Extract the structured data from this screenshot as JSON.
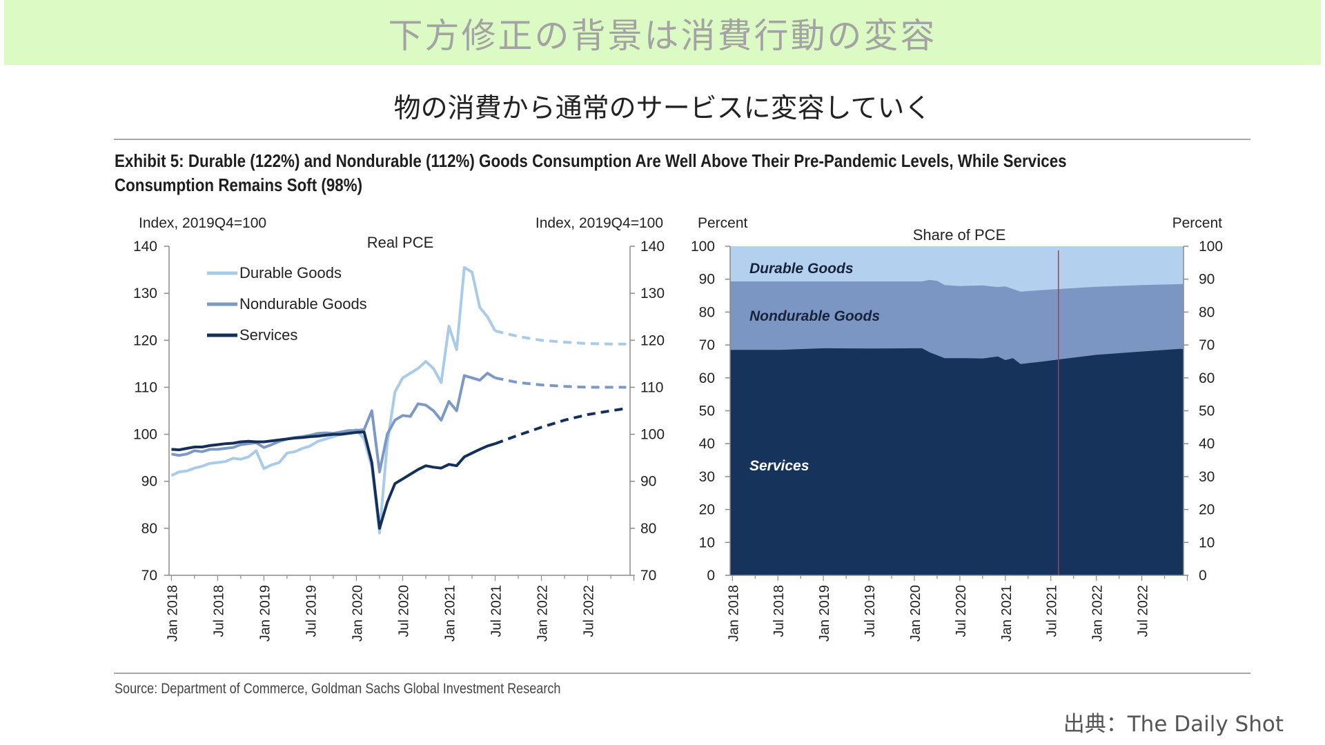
{
  "banner": {
    "title": "下方修正の背景は消費行動の変容"
  },
  "subtitle": "物の消費から通常のサービスに変容していく",
  "exhibit_title": "Exhibit 5: Durable (122%) and Nondurable (112%) Goods Consumption Are Well Above Their Pre-Pandemic Levels, While Services Consumption Remains Soft (98%)",
  "source": "Source: Department of Commerce, Goldman Sachs Global Investment Research",
  "credit": "出典：The Daily Shot",
  "colors": {
    "durable": "#a9cbe8",
    "nondurable": "#7c99c6",
    "services": "#14305a",
    "area_durable": "#b3d0ee",
    "area_nondurable": "#7b96c2",
    "area_services": "#15335b",
    "marker": "#b53a3a"
  },
  "chart_data": [
    {
      "type": "line",
      "title": "Real PCE",
      "left_axis_label": "Index, 2019Q4=100",
      "right_axis_label": "Index, 2019Q4=100",
      "ylim": [
        70,
        140
      ],
      "yticks": [
        70,
        80,
        90,
        100,
        110,
        120,
        130,
        140
      ],
      "xlim": [
        "2018-01",
        "2022-12"
      ],
      "xtick_labels": [
        "Jan 2018",
        "Jul 2018",
        "Jan 2019",
        "Jul 2019",
        "Jan 2020",
        "Jul 2020",
        "Jan 2021",
        "Jul 2021",
        "Jan 2022",
        "Jul 2022"
      ],
      "xtick_dates": [
        "2018-01",
        "2018-07",
        "2019-01",
        "2019-07",
        "2020-01",
        "2020-07",
        "2021-01",
        "2021-07",
        "2022-01",
        "2022-07"
      ],
      "legend_position": "top-left",
      "series": [
        {
          "name": "Durable Goods",
          "color_key": "durable",
          "actual": [
            [
              "2018-01",
              91.2
            ],
            [
              "2018-02",
              92.0
            ],
            [
              "2018-03",
              92.2
            ],
            [
              "2018-04",
              92.8
            ],
            [
              "2018-05",
              93.2
            ],
            [
              "2018-06",
              93.8
            ],
            [
              "2018-07",
              94.0
            ],
            [
              "2018-08",
              94.2
            ],
            [
              "2018-09",
              94.9
            ],
            [
              "2018-10",
              94.7
            ],
            [
              "2018-11",
              95.2
            ],
            [
              "2018-12",
              96.5
            ],
            [
              "2019-01",
              92.7
            ],
            [
              "2019-02",
              93.5
            ],
            [
              "2019-03",
              94.0
            ],
            [
              "2019-04",
              96.0
            ],
            [
              "2019-05",
              96.3
            ],
            [
              "2019-06",
              97.0
            ],
            [
              "2019-07",
              97.5
            ],
            [
              "2019-08",
              98.5
            ],
            [
              "2019-09",
              99.0
            ],
            [
              "2019-10",
              99.5
            ],
            [
              "2019-11",
              100.0
            ],
            [
              "2019-12",
              100.5
            ],
            [
              "2020-01",
              101.0
            ],
            [
              "2020-02",
              99.0
            ],
            [
              "2020-03",
              93.0
            ],
            [
              "2020-04",
              79.0
            ],
            [
              "2020-05",
              98.0
            ],
            [
              "2020-06",
              109.0
            ],
            [
              "2020-07",
              112.0
            ],
            [
              "2020-08",
              113.0
            ],
            [
              "2020-09",
              114.0
            ],
            [
              "2020-10",
              115.5
            ],
            [
              "2020-11",
              114.0
            ],
            [
              "2020-12",
              111.0
            ],
            [
              "2021-01",
              123.0
            ],
            [
              "2021-02",
              118.0
            ],
            [
              "2021-03",
              135.5
            ],
            [
              "2021-04",
              134.5
            ],
            [
              "2021-05",
              127.0
            ],
            [
              "2021-06",
              125.0
            ],
            [
              "2021-07",
              122.0
            ]
          ],
          "projection": [
            [
              "2021-07",
              122.0
            ],
            [
              "2021-10",
              120.8
            ],
            [
              "2022-01",
              120.0
            ],
            [
              "2022-04",
              119.6
            ],
            [
              "2022-07",
              119.3
            ],
            [
              "2022-10",
              119.2
            ],
            [
              "2022-12",
              119.2
            ]
          ]
        },
        {
          "name": "Nondurable Goods",
          "color_key": "nondurable",
          "actual": [
            [
              "2018-01",
              95.8
            ],
            [
              "2018-02",
              95.5
            ],
            [
              "2018-03",
              95.8
            ],
            [
              "2018-04",
              96.5
            ],
            [
              "2018-05",
              96.3
            ],
            [
              "2018-06",
              96.8
            ],
            [
              "2018-07",
              96.8
            ],
            [
              "2018-08",
              97.0
            ],
            [
              "2018-09",
              97.2
            ],
            [
              "2018-10",
              97.8
            ],
            [
              "2018-11",
              98.0
            ],
            [
              "2018-12",
              98.2
            ],
            [
              "2019-01",
              97.2
            ],
            [
              "2019-02",
              97.8
            ],
            [
              "2019-03",
              98.5
            ],
            [
              "2019-04",
              99.0
            ],
            [
              "2019-05",
              99.3
            ],
            [
              "2019-06",
              99.5
            ],
            [
              "2019-07",
              99.8
            ],
            [
              "2019-08",
              100.2
            ],
            [
              "2019-09",
              100.3
            ],
            [
              "2019-10",
              100.2
            ],
            [
              "2019-11",
              100.5
            ],
            [
              "2019-12",
              100.8
            ],
            [
              "2020-01",
              100.8
            ],
            [
              "2020-02",
              101.0
            ],
            [
              "2020-03",
              105.0
            ],
            [
              "2020-04",
              92.0
            ],
            [
              "2020-05",
              100.0
            ],
            [
              "2020-06",
              103.0
            ],
            [
              "2020-07",
              104.0
            ],
            [
              "2020-08",
              103.8
            ],
            [
              "2020-09",
              106.5
            ],
            [
              "2020-10",
              106.2
            ],
            [
              "2020-11",
              105.0
            ],
            [
              "2020-12",
              103.0
            ],
            [
              "2021-01",
              107.0
            ],
            [
              "2021-02",
              105.0
            ],
            [
              "2021-03",
              112.5
            ],
            [
              "2021-04",
              112.0
            ],
            [
              "2021-05",
              111.5
            ],
            [
              "2021-06",
              113.0
            ],
            [
              "2021-07",
              112.0
            ]
          ],
          "projection": [
            [
              "2021-07",
              112.0
            ],
            [
              "2021-10",
              111.0
            ],
            [
              "2022-01",
              110.5
            ],
            [
              "2022-04",
              110.2
            ],
            [
              "2022-07",
              110.0
            ],
            [
              "2022-10",
              110.0
            ],
            [
              "2022-12",
              110.0
            ]
          ]
        },
        {
          "name": "Services",
          "color_key": "services",
          "actual": [
            [
              "2018-01",
              96.8
            ],
            [
              "2018-02",
              96.7
            ],
            [
              "2018-03",
              97.0
            ],
            [
              "2018-04",
              97.3
            ],
            [
              "2018-05",
              97.3
            ],
            [
              "2018-06",
              97.6
            ],
            [
              "2018-07",
              97.8
            ],
            [
              "2018-08",
              98.0
            ],
            [
              "2018-09",
              98.1
            ],
            [
              "2018-10",
              98.4
            ],
            [
              "2018-11",
              98.5
            ],
            [
              "2018-12",
              98.4
            ],
            [
              "2019-01",
              98.4
            ],
            [
              "2019-02",
              98.6
            ],
            [
              "2019-03",
              98.8
            ],
            [
              "2019-04",
              99.0
            ],
            [
              "2019-05",
              99.2
            ],
            [
              "2019-06",
              99.3
            ],
            [
              "2019-07",
              99.5
            ],
            [
              "2019-08",
              99.6
            ],
            [
              "2019-09",
              99.8
            ],
            [
              "2019-10",
              100.0
            ],
            [
              "2019-11",
              100.0
            ],
            [
              "2019-12",
              100.2
            ],
            [
              "2020-01",
              100.4
            ],
            [
              "2020-02",
              100.5
            ],
            [
              "2020-03",
              94.0
            ],
            [
              "2020-04",
              80.0
            ],
            [
              "2020-05",
              85.5
            ],
            [
              "2020-06",
              89.5
            ],
            [
              "2020-07",
              90.5
            ],
            [
              "2020-08",
              91.5
            ],
            [
              "2020-09",
              92.5
            ],
            [
              "2020-10",
              93.3
            ],
            [
              "2020-11",
              93.0
            ],
            [
              "2020-12",
              92.8
            ],
            [
              "2021-01",
              93.6
            ],
            [
              "2021-02",
              93.3
            ],
            [
              "2021-03",
              95.2
            ],
            [
              "2021-04",
              96.0
            ],
            [
              "2021-05",
              96.8
            ],
            [
              "2021-06",
              97.5
            ],
            [
              "2021-07",
              98.0
            ]
          ],
          "projection": [
            [
              "2021-07",
              98.0
            ],
            [
              "2021-10",
              99.8
            ],
            [
              "2022-01",
              101.5
            ],
            [
              "2022-04",
              103.0
            ],
            [
              "2022-07",
              104.2
            ],
            [
              "2022-10",
              105.0
            ],
            [
              "2022-12",
              105.5
            ]
          ]
        }
      ]
    },
    {
      "type": "area",
      "title": "Share of PCE",
      "left_axis_label": "Percent",
      "right_axis_label": "Percent",
      "ylim": [
        0,
        100
      ],
      "yticks": [
        0,
        10,
        20,
        30,
        40,
        50,
        60,
        70,
        80,
        90,
        100
      ],
      "xlim": [
        "2018-01",
        "2022-12"
      ],
      "xtick_labels": [
        "Jan 2018",
        "Jul 2018",
        "Jan 2019",
        "Jul 2019",
        "Jan 2020",
        "Jul 2020",
        "Jan 2021",
        "Jul 2021",
        "Jan 2022",
        "Jul 2022"
      ],
      "xtick_dates": [
        "2018-01",
        "2018-07",
        "2019-01",
        "2019-07",
        "2020-01",
        "2020-07",
        "2021-01",
        "2021-07",
        "2022-01",
        "2022-07"
      ],
      "vertical_marker": "2021-08",
      "stack_labels": {
        "durable": "Durable Goods",
        "nondurable": "Nondurable Goods",
        "services": "Services"
      },
      "series": [
        {
          "name": "Services",
          "color_key": "area_services",
          "points": [
            [
              "2018-01",
              68.5
            ],
            [
              "2018-07",
              68.5
            ],
            [
              "2019-01",
              69.0
            ],
            [
              "2019-07",
              68.9
            ],
            [
              "2020-01",
              69.0
            ],
            [
              "2020-02",
              69.0
            ],
            [
              "2020-03",
              67.8
            ],
            [
              "2020-05",
              66.0
            ],
            [
              "2020-08",
              66.0
            ],
            [
              "2020-10",
              65.9
            ],
            [
              "2020-12",
              66.5
            ],
            [
              "2021-01",
              65.4
            ],
            [
              "2021-02",
              66.0
            ],
            [
              "2021-03",
              64.2
            ],
            [
              "2021-06",
              65.0
            ],
            [
              "2021-08",
              65.6
            ],
            [
              "2022-01",
              67.0
            ],
            [
              "2022-07",
              68.0
            ],
            [
              "2022-12",
              68.8
            ]
          ]
        },
        {
          "name": "Nondurable Goods",
          "color_key": "area_nondurable",
          "points": [
            [
              "2018-01",
              89.3
            ],
            [
              "2019-01",
              89.3
            ],
            [
              "2020-01",
              89.3
            ],
            [
              "2020-02",
              89.3
            ],
            [
              "2020-03",
              89.8
            ],
            [
              "2020-04",
              89.5
            ],
            [
              "2020-05",
              88.2
            ],
            [
              "2020-07",
              87.9
            ],
            [
              "2020-10",
              88.1
            ],
            [
              "2020-12",
              87.6
            ],
            [
              "2021-01",
              87.8
            ],
            [
              "2021-02",
              87.0
            ],
            [
              "2021-03",
              86.2
            ],
            [
              "2021-06",
              86.7
            ],
            [
              "2021-08",
              87.0
            ],
            [
              "2022-01",
              87.7
            ],
            [
              "2022-07",
              88.2
            ],
            [
              "2022-12",
              88.5
            ]
          ]
        },
        {
          "name": "Durable Goods",
          "color_key": "area_durable",
          "points": [
            [
              "2018-01",
              100
            ],
            [
              "2022-12",
              100
            ]
          ]
        }
      ]
    }
  ]
}
